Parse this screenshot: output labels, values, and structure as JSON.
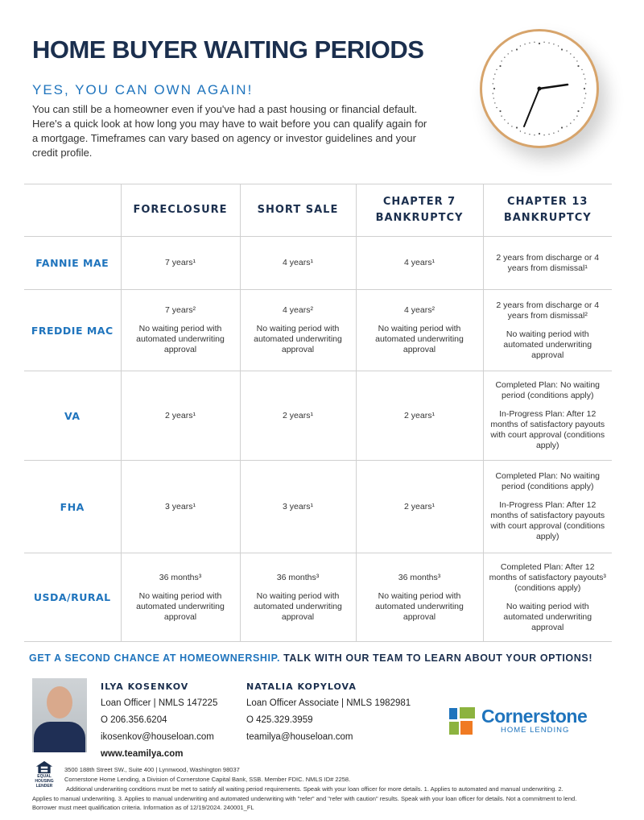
{
  "header": {
    "title": "HOME BUYER WAITING PERIODS",
    "subtitle": "YES, YOU CAN OWN AGAIN!",
    "intro": "You can still be a homeowner even if you've had a past housing or financial default. Here's a quick look at how long you may have to wait before you can qualify again for a mortgage. Timeframes can vary based on agency or investor guidelines and your credit profile."
  },
  "table": {
    "columns": [
      "",
      "FORECLOSURE",
      "SHORT SALE",
      "CHAPTER 7 BANKRUPTCY",
      "CHAPTER 13 BANKRUPTCY"
    ],
    "rows": [
      {
        "label": "FANNIE MAE",
        "cells": [
          [
            "7 years¹"
          ],
          [
            "4 years¹"
          ],
          [
            "4 years¹"
          ],
          [
            "2 years from discharge or 4 years from dismissal¹"
          ]
        ]
      },
      {
        "label": "FREDDIE MAC",
        "cells": [
          [
            "7 years²",
            "No waiting period with automated underwriting approval"
          ],
          [
            "4 years²",
            "No waiting period with automated underwriting approval"
          ],
          [
            "4 years²",
            "No waiting period with automated underwriting approval"
          ],
          [
            "2 years from discharge or 4 years from dismissal²",
            "No waiting period with automated underwriting approval"
          ]
        ]
      },
      {
        "label": "VA",
        "cells": [
          [
            "2 years¹"
          ],
          [
            "2 years¹"
          ],
          [
            "2 years¹"
          ],
          [
            "Completed Plan: No waiting period (conditions apply)",
            "In-Progress Plan: After 12 months of satisfactory payouts with court approval (conditions apply)"
          ]
        ]
      },
      {
        "label": "FHA",
        "cells": [
          [
            "3 years¹"
          ],
          [
            "3 years¹"
          ],
          [
            "2 years¹"
          ],
          [
            "Completed Plan: No waiting period (conditions apply)",
            "In-Progress Plan: After 12 months of satisfactory payouts with court approval (conditions apply)"
          ]
        ]
      },
      {
        "label": "USDA/RURAL",
        "cells": [
          [
            "36 months³",
            "No waiting period with automated underwriting approval"
          ],
          [
            "36 months³",
            "No waiting period with automated underwriting approval"
          ],
          [
            "36 months³",
            "No waiting period with automated underwriting approval"
          ],
          [
            "Completed Plan: After 12 months of satisfactory payouts³ (conditions apply)",
            "No waiting period with automated underwriting approval"
          ]
        ]
      }
    ]
  },
  "cta": {
    "part1": "GET A SECOND CHANCE AT HOMEOWNERSHIP.",
    "part2": " TALK WITH OUR TEAM TO LEARN ABOUT YOUR OPTIONS!"
  },
  "contacts": [
    {
      "name": "ILYA KOSENKOV",
      "title": "Loan Officer | NMLS 147225",
      "phone": "O 206.356.6204",
      "email": "ikosenkov@houseloan.com",
      "web": "www.teamilya.com"
    },
    {
      "name": "NATALIA KOPYLOVA",
      "title": "Loan Officer Associate | NMLS 1982981",
      "phone": "O 425.329.3959",
      "email": "teamilya@houseloan.com"
    }
  ],
  "logo": {
    "word": "Cornerstone",
    "sub": "HOME LENDING"
  },
  "eho": "EQUAL HOUSING LENDER",
  "footer": {
    "address": "3500 188th Street SW., Suite 400  |  Lynnwood, Washington 98037",
    "company": "Cornerstone Home Lending, a Division of Cornerstone Capital Bank, SSB. Member FDIC. NMLS ID# 2258.",
    "disclaimer": "Additional underwriting conditions must be met to satisfy all waiting period requirements. Speak with your loan officer for more details. 1. Applies to automated and manual underwriting. 2. Applies to manual underwriting. 3. Applies to manual underwriting and automated underwriting with \"refer\" and \"refer with caution\" results. Speak with your loan officer for details. Not a commitment to lend. Borrower must meet qualification criteria. Information as of 12/19/2024. 240001_FL"
  },
  "colors": {
    "navy": "#1b2f4e",
    "blue": "#1f74bd",
    "clock_rim": "#d7a46b"
  }
}
